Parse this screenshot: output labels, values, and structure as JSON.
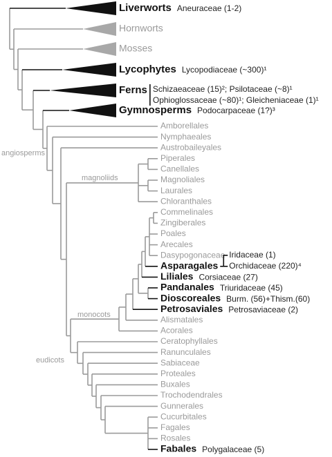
{
  "lineages": [
    {
      "name": "Liverworts",
      "note": "Aneuraceae (1-2)"
    },
    {
      "name": "Hornworts"
    },
    {
      "name": "Mosses"
    },
    {
      "name": "Lycophytes",
      "note": "Lycopodiaceae (~300)¹"
    },
    {
      "name": "Ferns",
      "notes": [
        "Schizaeaceae (15)²; Psilotaceae (~8)¹",
        "Ophioglossaceae (~80)¹; Gleicheniaceae (1)¹"
      ]
    },
    {
      "name": "Gymnosperms",
      "note": "Podocarpaceae (1?)³"
    }
  ],
  "clade_labels": [
    "angiosperms",
    "magnoliids",
    "monocots",
    "eudicots"
  ],
  "orders": [
    {
      "name": "Amborellales"
    },
    {
      "name": "Nymphaeales"
    },
    {
      "name": "Austrobaileyales"
    },
    {
      "name": "Piperales"
    },
    {
      "name": "Canellales"
    },
    {
      "name": "Magnoliales"
    },
    {
      "name": "Laurales"
    },
    {
      "name": "Chloranthales"
    },
    {
      "name": "Commelinales"
    },
    {
      "name": "Zingiberales"
    },
    {
      "name": "Poales"
    },
    {
      "name": "Arecales"
    },
    {
      "name": "Dasypogonaceae"
    },
    {
      "name": "Asparagales",
      "notes": [
        "Iridaceae (1)",
        "Orchidaceae (220)⁴"
      ]
    },
    {
      "name": "Liliales",
      "note": "Corsiaceae (27)"
    },
    {
      "name": "Pandanales",
      "note": "Triuridaceae (45)"
    },
    {
      "name": "Dioscoreales",
      "note": "Burm. (56)+Thism.(60)"
    },
    {
      "name": "Petrosaviales",
      "note": "Petrosaviaceae (2)"
    },
    {
      "name": "Alismatales"
    },
    {
      "name": "Acorales"
    },
    {
      "name": "Ceratophyllales"
    },
    {
      "name": "Ranunculales"
    },
    {
      "name": "Sabiaceae"
    },
    {
      "name": "Proteales"
    },
    {
      "name": "Buxales"
    },
    {
      "name": "Trochodendrales"
    },
    {
      "name": "Gunnerales"
    },
    {
      "name": "Cucurbitales"
    },
    {
      "name": "Fagales"
    },
    {
      "name": "Rosales"
    },
    {
      "name": "Fabales",
      "note": "Polygalaceae (5)"
    }
  ]
}
